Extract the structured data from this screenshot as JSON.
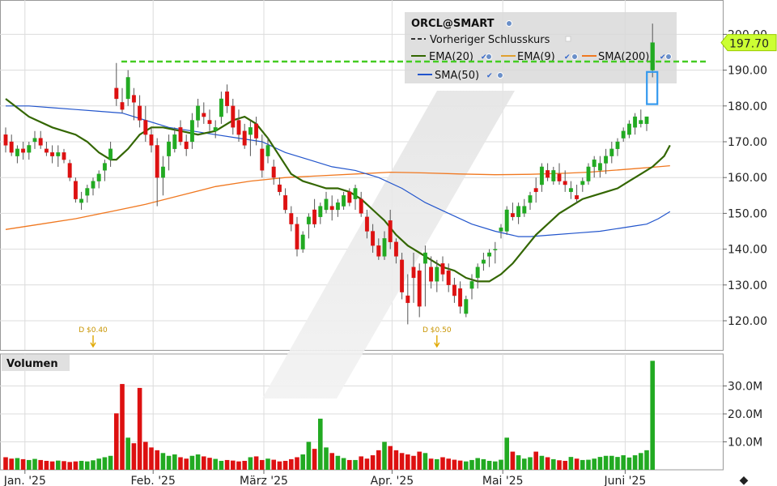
{
  "chart_data": {
    "type": "candlestick",
    "symbol": "ORCL@SMART",
    "price_axis": {
      "ticks": [
        120,
        130,
        140,
        150,
        160,
        170,
        180,
        190,
        200
      ],
      "labels": [
        "120.00",
        "130.00",
        "140.00",
        "150.00",
        "160.00",
        "170.00",
        "180.00",
        "190.00",
        "200.00"
      ],
      "range": [
        115,
        204
      ]
    },
    "last_price": {
      "value": 197.7,
      "label": "197.70"
    },
    "previous_close": 192.4,
    "volume_axis": {
      "ticks": [
        10,
        20,
        30
      ],
      "labels": [
        "10.0M",
        "20.0M",
        "30.0M"
      ],
      "range": [
        0,
        40
      ]
    },
    "volume_title": "Volumen",
    "x_labels": [
      "Jan. '25",
      "Feb. '25",
      "März '25",
      "Apr. '25",
      "Mai '25",
      "Juni '25"
    ],
    "x_label_days": [
      4,
      26,
      45,
      67,
      86,
      107
    ],
    "days_total": 117,
    "legend": [
      {
        "label": "ORCL@SMART",
        "style": "title"
      },
      {
        "label": "Vorheriger Schlusskurs",
        "style": "dash",
        "color": "#22aa22"
      },
      {
        "label": "EMA(20)",
        "style": "line",
        "color": "#336600"
      },
      {
        "label": "EMA(9)",
        "style": "line",
        "color": "#e0a030"
      },
      {
        "label": "SMA(200)",
        "style": "line",
        "color": "#f07820"
      },
      {
        "label": "SMA(50)",
        "style": "line",
        "color": "#2255cc"
      }
    ],
    "dividends": [
      {
        "day": 15,
        "label": "D $0.40"
      },
      {
        "day": 74,
        "label": "D $0.50"
      }
    ],
    "ohlc": [
      [
        172,
        174,
        167,
        169
      ],
      [
        170,
        172,
        166,
        167
      ],
      [
        166,
        169,
        164,
        168
      ],
      [
        168,
        170,
        165,
        167
      ],
      [
        167,
        170,
        165,
        169
      ],
      [
        170,
        173,
        168,
        171
      ],
      [
        171,
        173,
        168,
        169
      ],
      [
        168,
        170,
        166,
        167
      ],
      [
        167,
        169,
        164,
        166
      ],
      [
        166,
        169,
        163,
        167
      ],
      [
        167,
        168,
        164,
        165
      ],
      [
        164,
        165,
        159,
        160
      ],
      [
        159,
        160,
        153,
        154
      ],
      [
        153,
        156,
        151,
        154
      ],
      [
        155,
        158,
        153,
        157
      ],
      [
        157,
        160,
        155,
        159
      ],
      [
        159,
        162,
        157,
        161
      ],
      [
        162,
        165,
        159,
        164
      ],
      [
        165,
        170,
        163,
        168
      ],
      [
        185,
        192,
        180,
        182
      ],
      [
        181,
        185,
        178,
        179
      ],
      [
        182,
        190,
        180,
        188
      ],
      [
        183,
        185,
        176,
        181
      ],
      [
        180,
        183,
        174,
        176
      ],
      [
        176,
        180,
        170,
        172
      ],
      [
        172,
        174,
        167,
        169
      ],
      [
        169,
        171,
        152,
        160
      ],
      [
        160,
        166,
        155,
        163
      ],
      [
        166,
        172,
        162,
        170
      ],
      [
        168,
        174,
        167,
        172
      ],
      [
        174,
        176,
        169,
        170
      ],
      [
        170,
        172,
        166,
        168
      ],
      [
        170,
        178,
        168,
        176
      ],
      [
        176,
        182,
        174,
        180
      ],
      [
        178,
        181,
        175,
        177
      ],
      [
        176,
        179,
        173,
        175
      ],
      [
        173,
        176,
        171,
        174
      ],
      [
        177,
        184,
        175,
        182
      ],
      [
        184,
        186,
        178,
        180
      ],
      [
        180,
        182,
        172,
        174
      ],
      [
        176,
        179,
        170,
        172
      ],
      [
        173,
        175,
        168,
        169
      ],
      [
        172,
        176,
        166,
        174
      ],
      [
        175,
        177,
        169,
        171
      ],
      [
        168,
        172,
        160,
        162
      ],
      [
        166,
        171,
        164,
        169
      ],
      [
        163,
        165,
        158,
        160
      ],
      [
        158,
        160,
        155,
        156
      ],
      [
        155,
        157,
        150,
        151
      ],
      [
        150,
        152,
        145,
        147
      ],
      [
        147,
        149,
        138,
        140
      ],
      [
        140,
        145,
        139,
        144
      ],
      [
        147,
        150,
        143,
        149
      ],
      [
        151,
        154,
        146,
        147
      ],
      [
        149,
        153,
        147,
        152
      ],
      [
        151,
        156,
        150,
        154
      ],
      [
        152,
        155,
        148,
        151
      ],
      [
        151,
        154,
        149,
        153
      ],
      [
        152,
        156,
        151,
        155
      ],
      [
        156,
        157,
        152,
        153
      ],
      [
        154,
        158,
        151,
        157
      ],
      [
        154,
        156,
        149,
        150
      ],
      [
        149,
        151,
        143,
        145
      ],
      [
        145,
        147,
        139,
        141
      ],
      [
        141,
        143,
        137,
        138
      ],
      [
        138,
        145,
        137,
        143
      ],
      [
        148,
        151,
        140,
        142
      ],
      [
        142,
        143,
        136,
        138
      ],
      [
        137,
        139,
        126,
        128
      ],
      [
        127,
        133,
        119,
        125
      ],
      [
        135,
        139,
        125,
        132
      ],
      [
        134,
        136,
        121,
        124
      ],
      [
        136,
        141,
        124,
        139
      ],
      [
        135,
        138,
        129,
        131
      ],
      [
        131,
        137,
        128,
        135
      ],
      [
        136,
        138,
        131,
        133
      ],
      [
        134,
        136,
        128,
        130
      ],
      [
        130,
        132,
        125,
        127
      ],
      [
        129,
        131,
        122,
        124
      ],
      [
        122,
        127,
        121,
        126
      ],
      [
        129,
        133,
        126,
        131
      ],
      [
        132,
        136,
        129,
        135
      ],
      [
        136,
        139,
        134,
        137
      ],
      [
        138,
        140,
        135,
        139
      ],
      [
        140,
        142,
        136,
        140
      ],
      [
        145,
        147,
        143,
        146
      ],
      [
        145,
        152,
        144,
        151
      ],
      [
        150,
        153,
        148,
        149
      ],
      [
        149,
        153,
        147,
        152
      ],
      [
        150,
        154,
        149,
        152
      ],
      [
        153,
        156,
        151,
        155
      ],
      [
        157,
        160,
        153,
        156
      ],
      [
        158,
        164,
        156,
        163
      ],
      [
        162,
        164,
        159,
        160
      ],
      [
        159,
        163,
        158,
        162
      ],
      [
        161,
        164,
        158,
        159
      ],
      [
        159,
        162,
        156,
        158
      ],
      [
        156,
        159,
        154,
        157
      ],
      [
        155,
        158,
        153,
        154
      ],
      [
        158,
        160,
        156,
        159
      ],
      [
        159,
        164,
        158,
        163
      ],
      [
        163,
        166,
        160,
        165
      ],
      [
        162,
        166,
        160,
        164
      ],
      [
        164,
        168,
        161,
        166
      ],
      [
        166,
        170,
        164,
        168
      ],
      [
        168,
        171,
        166,
        170
      ],
      [
        171,
        174,
        170,
        173
      ],
      [
        172,
        176,
        171,
        175
      ],
      [
        174,
        178,
        172,
        177
      ],
      [
        175,
        179,
        174,
        176
      ],
      [
        175,
        177,
        173,
        177
      ],
      [
        190,
        203,
        188,
        197.7
      ]
    ],
    "volume": [
      4.5,
      4.0,
      4.2,
      3.8,
      3.5,
      3.9,
      3.5,
      3.2,
      3.0,
      3.3,
      3.1,
      2.8,
      3.0,
      3.2,
      3.0,
      3.4,
      4.0,
      4.5,
      5.0,
      20.2,
      30.7,
      11.5,
      9.5,
      29.3,
      10.0,
      8.0,
      7.0,
      6.0,
      5.0,
      5.5,
      4.5,
      4.0,
      5.0,
      5.5,
      4.8,
      4.3,
      3.9,
      3.2,
      3.5,
      3.3,
      3.0,
      3.2,
      4.5,
      4.8,
      3.5,
      4.0,
      3.6,
      3.0,
      3.2,
      3.8,
      4.5,
      5.5,
      10.0,
      7.5,
      18.3,
      8.0,
      6.0,
      5.0,
      4.2,
      3.5,
      3.5,
      4.8,
      4.0,
      5.2,
      7.0,
      10.0,
      8.5,
      7.0,
      6.0,
      5.5,
      5.0,
      6.5,
      6.0,
      4.0,
      3.8,
      4.5,
      4.0,
      3.6,
      3.3,
      3.0,
      3.5,
      4.2,
      3.8,
      3.2,
      3.0,
      3.6,
      11.5,
      6.5,
      5.2,
      4.0,
      4.5,
      6.5,
      5.0,
      4.5,
      3.8,
      3.4,
      3.2,
      4.6,
      4.0,
      3.5,
      3.6,
      4.0,
      4.6,
      5.0,
      5.0,
      4.6,
      5.2,
      4.4,
      5.2,
      6.0,
      7.0,
      39.0
    ],
    "ema20": [
      [
        0,
        182
      ],
      [
        4,
        177
      ],
      [
        8,
        174
      ],
      [
        12,
        172
      ],
      [
        14,
        170
      ],
      [
        16,
        167
      ],
      [
        18,
        165
      ],
      [
        19,
        165
      ],
      [
        21,
        168
      ],
      [
        23,
        172
      ],
      [
        25,
        174
      ],
      [
        27,
        174
      ],
      [
        30,
        173
      ],
      [
        33,
        172
      ],
      [
        36,
        173
      ],
      [
        39,
        176
      ],
      [
        41,
        177
      ],
      [
        43,
        175
      ],
      [
        45,
        171
      ],
      [
        47,
        166
      ],
      [
        49,
        161
      ],
      [
        51,
        159
      ],
      [
        53,
        158
      ],
      [
        55,
        157
      ],
      [
        57,
        157
      ],
      [
        59,
        156
      ],
      [
        61,
        154
      ],
      [
        63,
        151
      ],
      [
        65,
        148
      ],
      [
        67,
        144
      ],
      [
        69,
        141
      ],
      [
        71,
        139
      ],
      [
        73,
        137
      ],
      [
        75,
        135
      ],
      [
        77,
        134
      ],
      [
        79,
        132
      ],
      [
        81,
        131
      ],
      [
        83,
        131
      ],
      [
        85,
        133
      ],
      [
        87,
        136
      ],
      [
        89,
        140
      ],
      [
        91,
        144
      ],
      [
        93,
        147
      ],
      [
        95,
        150
      ],
      [
        97,
        152
      ],
      [
        99,
        154
      ],
      [
        101,
        155
      ],
      [
        103,
        156
      ],
      [
        105,
        157
      ],
      [
        107,
        159
      ],
      [
        109,
        161
      ],
      [
        111,
        163
      ],
      [
        113,
        166
      ],
      [
        114,
        169
      ]
    ],
    "sma50": [
      [
        0,
        180
      ],
      [
        4,
        180
      ],
      [
        8,
        179.5
      ],
      [
        12,
        179
      ],
      [
        16,
        178.5
      ],
      [
        20,
        178
      ],
      [
        24,
        176
      ],
      [
        28,
        174
      ],
      [
        32,
        173
      ],
      [
        36,
        172
      ],
      [
        40,
        171
      ],
      [
        44,
        170
      ],
      [
        48,
        167
      ],
      [
        52,
        165
      ],
      [
        56,
        163
      ],
      [
        60,
        162
      ],
      [
        64,
        160
      ],
      [
        68,
        157
      ],
      [
        72,
        153
      ],
      [
        76,
        150
      ],
      [
        80,
        147
      ],
      [
        84,
        145
      ],
      [
        88,
        143.5
      ],
      [
        90,
        143.5
      ],
      [
        94,
        144
      ],
      [
        98,
        144.5
      ],
      [
        102,
        145
      ],
      [
        106,
        146
      ],
      [
        108,
        146.5
      ],
      [
        110,
        147
      ],
      [
        112,
        148.5
      ],
      [
        114,
        150.5
      ]
    ],
    "sma200": [
      [
        0,
        145.5
      ],
      [
        6,
        147
      ],
      [
        12,
        148.5
      ],
      [
        18,
        150.5
      ],
      [
        24,
        152.5
      ],
      [
        30,
        155
      ],
      [
        36,
        157.5
      ],
      [
        42,
        159
      ],
      [
        48,
        160
      ],
      [
        54,
        160.5
      ],
      [
        60,
        161
      ],
      [
        66,
        161.5
      ],
      [
        72,
        161.3
      ],
      [
        78,
        161
      ],
      [
        84,
        160.8
      ],
      [
        90,
        160.9
      ],
      [
        96,
        161.2
      ],
      [
        100,
        161.5
      ],
      [
        104,
        162
      ],
      [
        108,
        162.5
      ],
      [
        112,
        163
      ],
      [
        114,
        163.3
      ]
    ]
  }
}
